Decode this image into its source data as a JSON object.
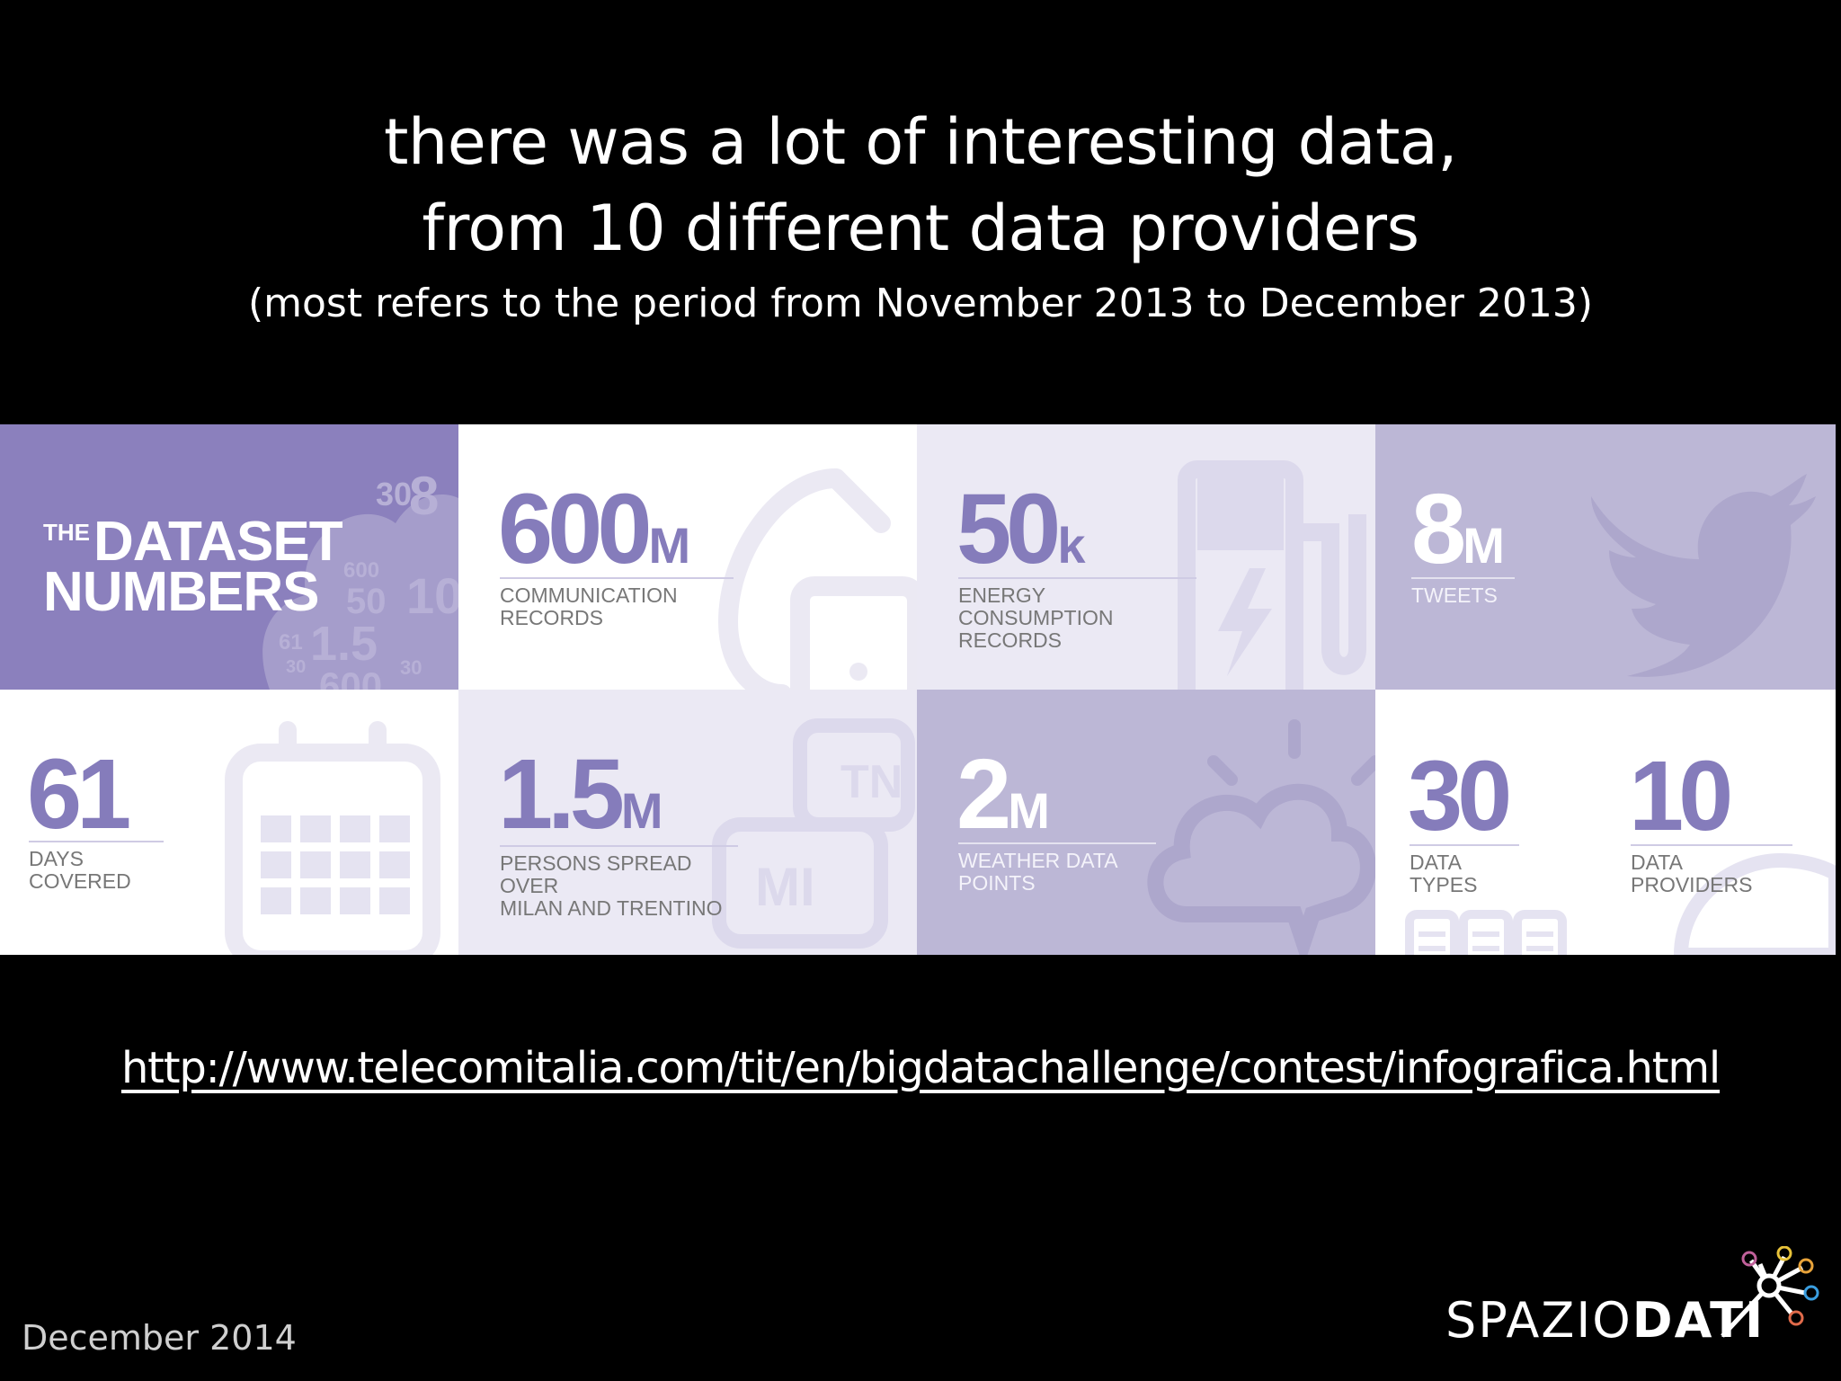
{
  "slide": {
    "title_line1": "there was a lot of interesting data,",
    "title_line2": "from 10 different data providers",
    "subtitle": "(most refers to the period from November 2013 to December 2013)",
    "url": "http://www.telecomitalia.com/tit/en/bigdatachallenge/contest/infografica.html",
    "date": "December 2014"
  },
  "infographic": {
    "header_the": "THE",
    "header_line1": "DATASET",
    "header_line2": "NUMBERS",
    "cloud_numbers": [
      "30",
      "8",
      "600",
      "50",
      "10",
      "61",
      "1.5",
      "30",
      "30",
      "600"
    ],
    "stats": [
      {
        "value": "600",
        "unit": "M",
        "label": "COMMUNICATION\nRECORDS",
        "icon": "telephone-icon"
      },
      {
        "value": "50",
        "unit": "k",
        "label": "ENERGY CONSUMPTION\nRECORDS",
        "icon": "fuel-pump-icon"
      },
      {
        "value": "8",
        "unit": "M",
        "label": "TWEETS",
        "icon": "twitter-bird-icon"
      },
      {
        "value": "61",
        "unit": "",
        "label": "DAYS COVERED",
        "icon": "calendar-icon"
      },
      {
        "value": "1.5",
        "unit": "M",
        "label": "PERSONS SPREAD OVER\nMILAN AND TRENTINO",
        "icon": "speech-bubbles-icon"
      },
      {
        "value": "2",
        "unit": "M",
        "label": "WEATHER DATA\nPOINTS",
        "icon": "weather-cloud-icon"
      },
      {
        "value": "30",
        "unit": "",
        "label": "DATA TYPES",
        "icon": "data-types-icon"
      },
      {
        "value": "10",
        "unit": "",
        "label": "DATA PROVIDERS",
        "icon": "pie-chart-icon"
      }
    ],
    "bubble_labels": {
      "tn": "TN",
      "mi": "MI"
    }
  },
  "logo": {
    "light": "SPAZIO",
    "bold": "DATI",
    "node_colors": [
      "#c0609a",
      "#e8c33a",
      "#e8a33a",
      "#3a9ee0",
      "#e06a4a",
      "#d85a8a",
      "#ffffff"
    ]
  },
  "colors": {
    "background": "#000000",
    "purple_dark": "#8b80bd",
    "purple_mid": "#bcb7d6",
    "purple_pale": "#ebe9f4"
  }
}
